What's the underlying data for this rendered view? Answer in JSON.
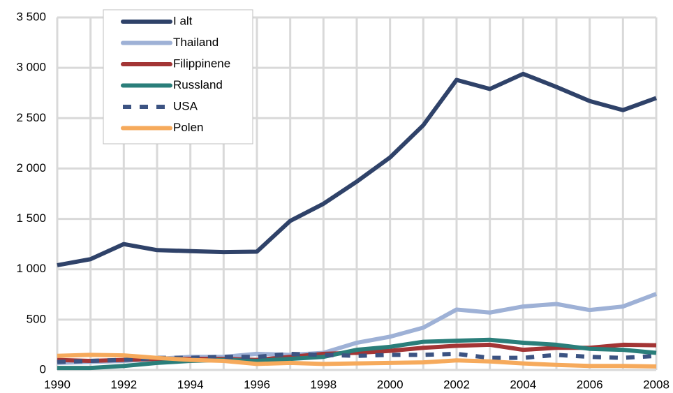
{
  "chart_data": {
    "type": "line",
    "x": [
      1990,
      1991,
      1992,
      1993,
      1994,
      1995,
      1996,
      1997,
      1998,
      1999,
      2000,
      2001,
      2002,
      2003,
      2004,
      2005,
      2006,
      2007,
      2008
    ],
    "series": [
      {
        "name": "I alt",
        "color": "#2f4269",
        "values": [
          1040,
          1100,
          1250,
          1190,
          1180,
          1170,
          1175,
          1480,
          1650,
          1870,
          2110,
          2430,
          2880,
          2790,
          2940,
          2810,
          2670,
          2580,
          2700
        ]
      },
      {
        "name": "Thailand",
        "color": "#9eb1d6",
        "values": [
          70,
          80,
          90,
          110,
          130,
          130,
          160,
          150,
          170,
          270,
          330,
          420,
          600,
          570,
          630,
          655,
          595,
          630,
          755
        ]
      },
      {
        "name": "Filippinene",
        "color": "#a33535",
        "values": [
          100,
          90,
          100,
          110,
          110,
          110,
          100,
          130,
          160,
          170,
          190,
          220,
          240,
          250,
          200,
          220,
          220,
          250,
          245
        ]
      },
      {
        "name": "Russland",
        "color": "#2a7e7a",
        "values": [
          20,
          20,
          40,
          70,
          90,
          100,
          90,
          110,
          130,
          200,
          230,
          280,
          290,
          300,
          270,
          250,
          210,
          200,
          170
        ]
      },
      {
        "name": "USA",
        "color": "#3c5382",
        "dashed": true,
        "values": [
          80,
          90,
          100,
          120,
          120,
          130,
          130,
          160,
          150,
          140,
          150,
          150,
          160,
          120,
          120,
          150,
          130,
          120,
          140
        ]
      },
      {
        "name": "Polen",
        "color": "#f6aa5c",
        "values": [
          140,
          150,
          145,
          120,
          100,
          90,
          60,
          70,
          60,
          65,
          70,
          75,
          95,
          85,
          65,
          50,
          40,
          40,
          35
        ]
      }
    ],
    "xlim": [
      1990,
      2008
    ],
    "xticks": [
      1990,
      1992,
      1994,
      1996,
      1998,
      2000,
      2002,
      2004,
      2006,
      2008
    ],
    "ylim": [
      0,
      3500
    ],
    "yticks": [
      0,
      500,
      {
        "value": 1000,
        "label": "1 000"
      },
      {
        "value": 1500,
        "label": "1 500"
      },
      {
        "value": 2000,
        "label": "2 000"
      },
      {
        "value": 2500,
        "label": "2 500"
      },
      {
        "value": 3000,
        "label": "3 000"
      },
      {
        "value": 3500,
        "label": "3 500"
      }
    ],
    "grid": true,
    "legend": "upper-left"
  }
}
